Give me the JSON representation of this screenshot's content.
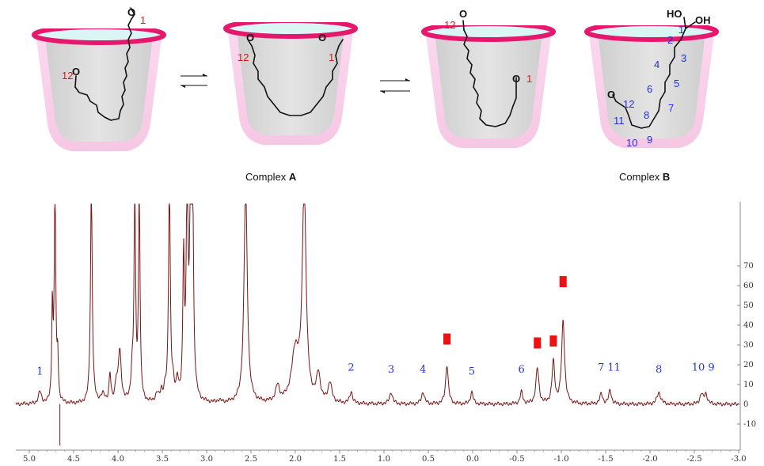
{
  "top_panel": {
    "complex_a_label": "Complex ",
    "complex_a_bold": "A",
    "complex_b_label": "Complex ",
    "complex_b_bold": "B",
    "structures": [
      {
        "name": "cup-1",
        "labels": [
          {
            "text": "1",
            "color": "red"
          },
          {
            "text": "12",
            "color": "red"
          }
        ],
        "atoms": [
          "O",
          "O"
        ]
      },
      {
        "name": "cup-2",
        "labels": [
          {
            "text": "12",
            "color": "red"
          },
          {
            "text": "1",
            "color": "red"
          }
        ],
        "atoms": [
          "O",
          "O"
        ]
      },
      {
        "name": "cup-3",
        "labels": [
          {
            "text": "12",
            "color": "red"
          },
          {
            "text": "1",
            "color": "red"
          }
        ],
        "atoms": [
          "O",
          "O"
        ]
      },
      {
        "name": "cup-4",
        "labels": [
          "1",
          "2",
          "3",
          "4",
          "5",
          "6",
          "7",
          "8",
          "9",
          "10",
          "11",
          "12"
        ],
        "atoms": [
          "HO",
          "OH",
          "O"
        ]
      }
    ]
  },
  "colors": {
    "rim": "#e5186e",
    "cup_shell": "#f8cfe8",
    "cup_inner": "#d7d7d7",
    "cup_top": "#d9f6f5",
    "spectrum_line": "#7a1414",
    "red_marker": "#ee1111",
    "blue_label": "#1f2fe0",
    "red_label": "#e0161a"
  },
  "chart_data": {
    "type": "line",
    "title": "",
    "xlabel": "",
    "ylabel": "",
    "xlim": [
      5.2,
      -3.0
    ],
    "ylim": [
      -16,
      76
    ],
    "x_ticks": [
      "5.0",
      "4.5",
      "4.0",
      "3.5",
      "3.0",
      "2.5",
      "2.0",
      "1.5",
      "1.0",
      "0.5",
      "0.0",
      "-0.5",
      "-1.0",
      "-1.5",
      "-2.0",
      "-2.5",
      "-3.0"
    ],
    "x_tick_values": [
      5.0,
      4.5,
      4.0,
      3.5,
      3.0,
      2.5,
      2.0,
      1.5,
      1.0,
      0.5,
      0.0,
      -0.5,
      -1.0,
      -1.5,
      -2.0,
      -2.5,
      -3.0
    ],
    "y_ticks": [
      "-10",
      "0",
      "10",
      "20",
      "30",
      "40",
      "50",
      "60",
      "70"
    ],
    "y_tick_values": [
      -10,
      0,
      10,
      20,
      30,
      40,
      50,
      60,
      70
    ],
    "baseline": 0,
    "peaks": [
      {
        "ppm": 4.88,
        "height": 6,
        "width": 0.02
      },
      {
        "ppm": 4.74,
        "height": 48,
        "width": 0.008
      },
      {
        "ppm": 4.71,
        "height": 110,
        "width": 0.01
      },
      {
        "ppm": 4.68,
        "height": 22,
        "width": 0.008
      },
      {
        "ppm": 4.3,
        "height": 110,
        "width": 0.012
      },
      {
        "ppm": 4.17,
        "height": 4,
        "width": 0.03
      },
      {
        "ppm": 4.09,
        "height": 14,
        "width": 0.012
      },
      {
        "ppm": 4.02,
        "height": 9,
        "width": 0.015
      },
      {
        "ppm": 3.98,
        "height": 26,
        "width": 0.02
      },
      {
        "ppm": 3.84,
        "height": 14,
        "width": 0.015
      },
      {
        "ppm": 3.81,
        "height": 110,
        "width": 0.01
      },
      {
        "ppm": 3.76,
        "height": 110,
        "width": 0.01
      },
      {
        "ppm": 3.56,
        "height": 4,
        "width": 0.02
      },
      {
        "ppm": 3.51,
        "height": 5,
        "width": 0.015
      },
      {
        "ppm": 3.47,
        "height": 5,
        "width": 0.015
      },
      {
        "ppm": 3.42,
        "height": 110,
        "width": 0.012
      },
      {
        "ppm": 3.38,
        "height": 7,
        "width": 0.015
      },
      {
        "ppm": 3.33,
        "height": 10,
        "width": 0.015
      },
      {
        "ppm": 3.26,
        "height": 70,
        "width": 0.01
      },
      {
        "ppm": 3.22,
        "height": 110,
        "width": 0.012
      },
      {
        "ppm": 3.18,
        "height": 110,
        "width": 0.012
      },
      {
        "ppm": 3.16,
        "height": 110,
        "width": 0.012
      },
      {
        "ppm": 2.86,
        "height": 1,
        "width": 0.03
      },
      {
        "ppm": 2.56,
        "height": 110,
        "width": 0.022
      },
      {
        "ppm": 2.2,
        "height": 8,
        "width": 0.025
      },
      {
        "ppm": 2.0,
        "height": 25,
        "width": 0.05
      },
      {
        "ppm": 1.9,
        "height": 110,
        "width": 0.025
      },
      {
        "ppm": 1.74,
        "height": 14,
        "width": 0.025
      },
      {
        "ppm": 1.61,
        "height": 10,
        "width": 0.025
      },
      {
        "ppm": 1.37,
        "height": 6,
        "width": 0.018
      },
      {
        "ppm": 0.92,
        "height": 6,
        "width": 0.02
      },
      {
        "ppm": 0.56,
        "height": 6,
        "width": 0.02
      },
      {
        "ppm": 0.29,
        "height": 20,
        "width": 0.018
      },
      {
        "ppm": 0.01,
        "height": 6,
        "width": 0.018
      },
      {
        "ppm": -0.55,
        "height": 6,
        "width": 0.018
      },
      {
        "ppm": -0.73,
        "height": 18,
        "width": 0.02
      },
      {
        "ppm": -0.91,
        "height": 21,
        "width": 0.018
      },
      {
        "ppm": -1.02,
        "height": 42,
        "width": 0.02
      },
      {
        "ppm": -1.45,
        "height": 5,
        "width": 0.02
      },
      {
        "ppm": -1.55,
        "height": 7,
        "width": 0.018
      },
      {
        "ppm": -2.1,
        "height": 6,
        "width": 0.025
      },
      {
        "ppm": -2.58,
        "height": 5,
        "width": 0.02
      },
      {
        "ppm": -2.63,
        "height": 5,
        "width": 0.02
      }
    ],
    "peak_labels": [
      {
        "text": "1",
        "ppm": 4.88,
        "y": 15
      },
      {
        "text": "2",
        "ppm": 1.37,
        "y": 17
      },
      {
        "text": "3",
        "ppm": 0.92,
        "y": 16
      },
      {
        "text": "4",
        "ppm": 0.56,
        "y": 16
      },
      {
        "text": "5",
        "ppm": 0.01,
        "y": 15
      },
      {
        "text": "6",
        "ppm": -0.55,
        "y": 16
      },
      {
        "text": "7 11",
        "ppm": -1.54,
        "y": 17
      },
      {
        "text": "8",
        "ppm": -2.1,
        "y": 16
      },
      {
        "text": "10 9",
        "ppm": -2.6,
        "y": 17
      }
    ],
    "markers": [
      {
        "ppm": 0.29,
        "y": 33
      },
      {
        "ppm": -0.73,
        "y": 31
      },
      {
        "ppm": -0.91,
        "y": 32
      },
      {
        "ppm": -1.02,
        "y": 62
      }
    ]
  }
}
